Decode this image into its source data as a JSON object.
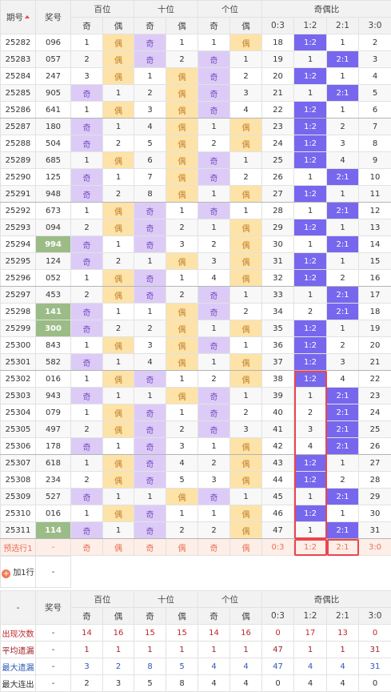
{
  "header": {
    "issue": "期号",
    "number": "奖号",
    "groups": [
      "百位",
      "十位",
      "个位",
      "奇偶比"
    ],
    "sub": [
      "奇",
      "偶",
      "奇",
      "偶",
      "奇",
      "偶",
      "0:3",
      "1:2",
      "2:1",
      "3:0"
    ]
  },
  "rows": [
    {
      "issue": "25282",
      "number": "096",
      "cells": [
        1,
        "偶",
        "奇",
        1,
        1,
        "偶",
        18,
        "1:2",
        1,
        2
      ]
    },
    {
      "issue": "25283",
      "number": "057",
      "cells": [
        2,
        "偶",
        "奇",
        2,
        "奇",
        1,
        19,
        1,
        "2:1",
        3
      ]
    },
    {
      "issue": "25284",
      "number": "247",
      "cells": [
        3,
        "偶",
        1,
        "偶",
        "奇",
        2,
        20,
        "1:2",
        1,
        4
      ]
    },
    {
      "issue": "25285",
      "number": "905",
      "cells": [
        "奇",
        1,
        2,
        "偶",
        "奇",
        3,
        21,
        1,
        "2:1",
        5
      ]
    },
    {
      "issue": "25286",
      "number": "641",
      "cells": [
        1,
        "偶",
        3,
        "偶",
        "奇",
        4,
        22,
        "1:2",
        1,
        6
      ]
    },
    {
      "issue": "25287",
      "number": "180",
      "cells": [
        "奇",
        1,
        4,
        "偶",
        1,
        "偶",
        23,
        "1:2",
        2,
        7
      ]
    },
    {
      "issue": "25288",
      "number": "504",
      "cells": [
        "奇",
        2,
        5,
        "偶",
        2,
        "偶",
        24,
        "1:2",
        3,
        8
      ]
    },
    {
      "issue": "25289",
      "number": "685",
      "cells": [
        1,
        "偶",
        6,
        "偶",
        "奇",
        1,
        25,
        "1:2",
        4,
        9
      ]
    },
    {
      "issue": "25290",
      "number": "125",
      "cells": [
        "奇",
        1,
        7,
        "偶",
        "奇",
        2,
        26,
        1,
        "2:1",
        10
      ]
    },
    {
      "issue": "25291",
      "number": "948",
      "cells": [
        "奇",
        2,
        8,
        "偶",
        1,
        "偶",
        27,
        "1:2",
        1,
        11
      ]
    },
    {
      "issue": "25292",
      "number": "673",
      "cells": [
        1,
        "偶",
        "奇",
        1,
        "奇",
        1,
        28,
        1,
        "2:1",
        12
      ]
    },
    {
      "issue": "25293",
      "number": "094",
      "cells": [
        2,
        "偶",
        "奇",
        2,
        1,
        "偶",
        29,
        "1:2",
        1,
        13
      ]
    },
    {
      "issue": "25294",
      "number": "994",
      "highlight": true,
      "cells": [
        "奇",
        1,
        "奇",
        3,
        2,
        "偶",
        30,
        1,
        "2:1",
        14
      ]
    },
    {
      "issue": "25295",
      "number": "124",
      "cells": [
        "奇",
        2,
        1,
        "偶",
        3,
        "偶",
        31,
        "1:2",
        1,
        15
      ]
    },
    {
      "issue": "25296",
      "number": "052",
      "cells": [
        1,
        "偶",
        "奇",
        1,
        4,
        "偶",
        32,
        "1:2",
        2,
        16
      ]
    },
    {
      "issue": "25297",
      "number": "453",
      "cells": [
        2,
        "偶",
        "奇",
        2,
        "奇",
        1,
        33,
        1,
        "2:1",
        17
      ]
    },
    {
      "issue": "25298",
      "number": "141",
      "highlight": true,
      "cells": [
        "奇",
        1,
        1,
        "偶",
        "奇",
        2,
        34,
        2,
        "2:1",
        18
      ]
    },
    {
      "issue": "25299",
      "number": "300",
      "highlight": true,
      "cells": [
        "奇",
        2,
        2,
        "偶",
        1,
        "偶",
        35,
        "1:2",
        1,
        19
      ]
    },
    {
      "issue": "25300",
      "number": "843",
      "cells": [
        1,
        "偶",
        3,
        "偶",
        "奇",
        1,
        36,
        "1:2",
        2,
        20
      ]
    },
    {
      "issue": "25301",
      "number": "582",
      "cells": [
        "奇",
        1,
        4,
        "偶",
        1,
        "偶",
        37,
        "1:2",
        3,
        21
      ]
    },
    {
      "issue": "25302",
      "number": "016",
      "cells": [
        1,
        "偶",
        "奇",
        1,
        2,
        "偶",
        38,
        "1:2",
        4,
        22
      ]
    },
    {
      "issue": "25303",
      "number": "943",
      "cells": [
        "奇",
        1,
        1,
        "偶",
        "奇",
        1,
        39,
        1,
        "2:1",
        23
      ]
    },
    {
      "issue": "25304",
      "number": "079",
      "cells": [
        1,
        "偶",
        "奇",
        1,
        "奇",
        2,
        40,
        2,
        "2:1",
        24
      ]
    },
    {
      "issue": "25305",
      "number": "497",
      "cells": [
        2,
        "偶",
        "奇",
        2,
        "奇",
        3,
        41,
        3,
        "2:1",
        25
      ]
    },
    {
      "issue": "25306",
      "number": "178",
      "cells": [
        "奇",
        1,
        "奇",
        3,
        1,
        "偶",
        42,
        4,
        "2:1",
        26
      ]
    },
    {
      "issue": "25307",
      "number": "618",
      "cells": [
        1,
        "偶",
        "奇",
        4,
        2,
        "偶",
        43,
        "1:2",
        1,
        27
      ]
    },
    {
      "issue": "25308",
      "number": "234",
      "cells": [
        2,
        "偶",
        "奇",
        5,
        3,
        "偶",
        44,
        "1:2",
        2,
        28
      ]
    },
    {
      "issue": "25309",
      "number": "527",
      "cells": [
        "奇",
        1,
        1,
        "偶",
        "奇",
        1,
        45,
        1,
        "2:1",
        29
      ]
    },
    {
      "issue": "25310",
      "number": "016",
      "cells": [
        1,
        "偶",
        "奇",
        1,
        1,
        "偶",
        46,
        "1:2",
        1,
        30
      ]
    },
    {
      "issue": "25311",
      "number": "114",
      "highlight": true,
      "cells": [
        "奇",
        1,
        "奇",
        2,
        2,
        "偶",
        47,
        1,
        "2:1",
        31
      ]
    }
  ],
  "preview": {
    "label": "预选行1",
    "number": "-",
    "cells": [
      "奇",
      "偶",
      "奇",
      "偶",
      "奇",
      "偶",
      "0:3",
      "1:2",
      "2:1",
      "3:0"
    ]
  },
  "add_row": {
    "label": "加1行",
    "number": "-"
  },
  "footer_header": {
    "issue": "-",
    "number": "奖号",
    "groups": [
      "百位",
      "十位",
      "个位",
      "奇偶比"
    ],
    "sub": [
      "奇",
      "偶",
      "奇",
      "偶",
      "奇",
      "偶",
      "0:3",
      "1:2",
      "2:1",
      "3:0"
    ]
  },
  "stats": [
    {
      "label": "出现次数",
      "number": "-",
      "values": [
        14,
        16,
        15,
        15,
        14,
        16,
        0,
        17,
        13,
        0
      ]
    },
    {
      "label": "平均遗漏",
      "number": "-",
      "values": [
        1,
        1,
        1,
        1,
        1,
        1,
        47,
        1,
        1,
        31
      ]
    },
    {
      "label": "最大遗漏",
      "number": "-",
      "values": [
        3,
        2,
        8,
        5,
        4,
        4,
        47,
        4,
        4,
        31
      ]
    },
    {
      "label": "最大连出",
      "number": "-",
      "values": [
        2,
        3,
        5,
        8,
        4,
        4,
        0,
        4,
        4,
        0
      ]
    }
  ]
}
